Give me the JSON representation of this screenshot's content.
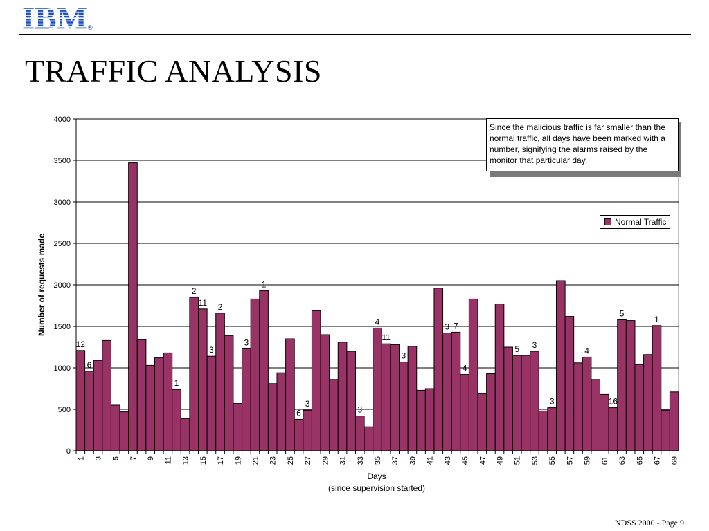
{
  "header": {
    "logo_text": "IBM",
    "registered_mark": "®",
    "title": "TRAFFIC ANALYSIS"
  },
  "footer": {
    "page_label": "NDSS 2000 - Page 9"
  },
  "colors": {
    "bar_fill": "#993366",
    "bar_outline": "#000000",
    "logo_blue": "#1a4fc3"
  },
  "callout": {
    "text": "Since the malicious traffic is far smaller than the normal traffic, all days have been marked with a number, signifying the alarms raised by the monitor that particular day."
  },
  "chart_data": {
    "type": "bar",
    "ylabel": "Number of requests made",
    "xlabel": "Days",
    "xlabel_sub": "(since supervision started)",
    "ylim": [
      0,
      4000
    ],
    "yticks": [
      0,
      500,
      1000,
      1500,
      2000,
      2500,
      3000,
      3500,
      4000
    ],
    "grid": "horizontal",
    "legend_position": "right",
    "x_tick_labels_shown": [
      "1",
      "3",
      "5",
      "7",
      "9",
      "11",
      "13",
      "15",
      "17",
      "19",
      "21",
      "23",
      "25",
      "27",
      "29",
      "31",
      "33",
      "35",
      "37",
      "39",
      "41",
      "43",
      "45",
      "47",
      "49",
      "51",
      "53",
      "55",
      "57",
      "59",
      "61",
      "63",
      "65",
      "67",
      "69"
    ],
    "categories": [
      "1",
      "2",
      "3",
      "4",
      "5",
      "6",
      "7",
      "8",
      "9",
      "10",
      "11",
      "12",
      "13",
      "14",
      "15",
      "16",
      "17",
      "18",
      "19",
      "20",
      "21",
      "22",
      "23",
      "24",
      "25",
      "26",
      "27",
      "28",
      "29",
      "30",
      "31",
      "32",
      "33",
      "34",
      "35",
      "36",
      "37",
      "38",
      "39",
      "40",
      "41",
      "42",
      "43",
      "44",
      "45",
      "46",
      "47",
      "48",
      "49",
      "50",
      "51",
      "52",
      "53",
      "54",
      "55",
      "56",
      "57",
      "58",
      "59",
      "60",
      "61",
      "62",
      "63",
      "64",
      "65",
      "66",
      "67",
      "68",
      "69"
    ],
    "series": [
      {
        "name": "Normal Traffic",
        "values": [
          1210,
          960,
          1090,
          1330,
          550,
          470,
          3470,
          1340,
          1030,
          1120,
          1180,
          740,
          390,
          1850,
          1710,
          1140,
          1660,
          1390,
          570,
          1230,
          1830,
          1930,
          810,
          940,
          1350,
          380,
          490,
          1690,
          1400,
          860,
          1310,
          1200,
          420,
          290,
          1480,
          1290,
          1280,
          1070,
          1260,
          730,
          750,
          1960,
          1420,
          1430,
          920,
          1830,
          690,
          930,
          1770,
          1250,
          1150,
          1150,
          1200,
          480,
          520,
          2050,
          1620,
          1060,
          1130,
          860,
          680,
          520,
          1580,
          1570,
          1040,
          1160,
          1510,
          490,
          710
        ]
      }
    ],
    "alarm_labels": [
      {
        "day": 1,
        "label": "12"
      },
      {
        "day": 2,
        "label": "6"
      },
      {
        "day": 12,
        "label": "1"
      },
      {
        "day": 14,
        "label": "2"
      },
      {
        "day": 15,
        "label": "11"
      },
      {
        "day": 16,
        "label": "3"
      },
      {
        "day": 17,
        "label": "2"
      },
      {
        "day": 20,
        "label": "3"
      },
      {
        "day": 22,
        "label": "1"
      },
      {
        "day": 26,
        "label": "6"
      },
      {
        "day": 27,
        "label": "3"
      },
      {
        "day": 33,
        "label": "3"
      },
      {
        "day": 35,
        "label": "4"
      },
      {
        "day": 36,
        "label": "11"
      },
      {
        "day": 38,
        "label": "3"
      },
      {
        "day": 43,
        "label": "3"
      },
      {
        "day": 44,
        "label": "7"
      },
      {
        "day": 45,
        "label": "4"
      },
      {
        "day": 51,
        "label": "5"
      },
      {
        "day": 53,
        "label": "3"
      },
      {
        "day": 55,
        "label": "3"
      },
      {
        "day": 59,
        "label": "4"
      },
      {
        "day": 62,
        "label": "16"
      },
      {
        "day": 63,
        "label": "5"
      },
      {
        "day": 67,
        "label": "1"
      }
    ]
  }
}
